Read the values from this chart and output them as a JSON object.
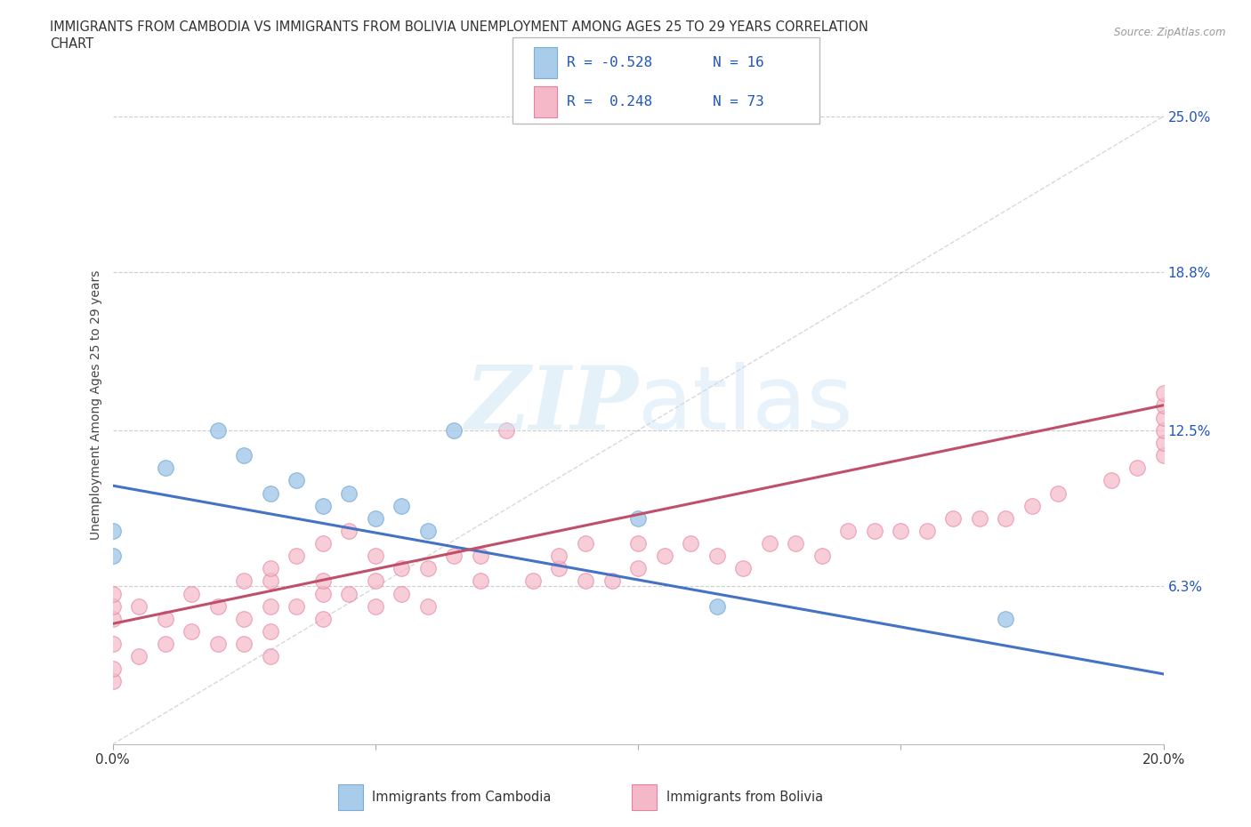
{
  "title_line1": "IMMIGRANTS FROM CAMBODIA VS IMMIGRANTS FROM BOLIVIA UNEMPLOYMENT AMONG AGES 25 TO 29 YEARS CORRELATION",
  "title_line2": "CHART",
  "source": "Source: ZipAtlas.com",
  "ylabel": "Unemployment Among Ages 25 to 29 years",
  "xlim": [
    0.0,
    0.2
  ],
  "ylim": [
    0.0,
    0.27
  ],
  "yticks": [
    0.063,
    0.125,
    0.188,
    0.25
  ],
  "ytick_labels": [
    "6.3%",
    "12.5%",
    "18.8%",
    "25.0%"
  ],
  "xticks": [
    0.0,
    0.05,
    0.1,
    0.15,
    0.2
  ],
  "xtick_labels": [
    "0.0%",
    "",
    "",
    "",
    "20.0%"
  ],
  "background_color": "#ffffff",
  "watermark": "ZIPatlas",
  "cambodia_color": "#A8CCEA",
  "bolivia_color": "#F5B8C8",
  "cambodia_edge": "#7AADD8",
  "bolivia_edge": "#E880A0",
  "trend_cambodia_color": "#4472C4",
  "trend_bolivia_color": "#C0506A",
  "diagonal_color": "#C8C8C8",
  "grid_color": "#CCCCCC",
  "r_color": "#2255BB",
  "cambodia_trend_x0": 0.0,
  "cambodia_trend_y0": 0.103,
  "cambodia_trend_x1": 0.2,
  "cambodia_trend_y1": 0.028,
  "bolivia_trend_x0": 0.0,
  "bolivia_trend_y0": 0.048,
  "bolivia_trend_x1": 0.2,
  "bolivia_trend_y1": 0.135,
  "cambodia_scatter_x": [
    0.0,
    0.0,
    0.01,
    0.02,
    0.025,
    0.03,
    0.035,
    0.04,
    0.045,
    0.05,
    0.055,
    0.06,
    0.065,
    0.1,
    0.115,
    0.17
  ],
  "cambodia_scatter_y": [
    0.075,
    0.085,
    0.11,
    0.125,
    0.115,
    0.1,
    0.105,
    0.095,
    0.1,
    0.09,
    0.095,
    0.085,
    0.125,
    0.09,
    0.055,
    0.05
  ],
  "bolivia_scatter_x": [
    0.0,
    0.0,
    0.0,
    0.0,
    0.0,
    0.0,
    0.005,
    0.005,
    0.01,
    0.01,
    0.015,
    0.015,
    0.02,
    0.02,
    0.025,
    0.025,
    0.025,
    0.03,
    0.03,
    0.03,
    0.03,
    0.03,
    0.035,
    0.035,
    0.04,
    0.04,
    0.04,
    0.04,
    0.045,
    0.045,
    0.05,
    0.05,
    0.05,
    0.055,
    0.055,
    0.06,
    0.06,
    0.065,
    0.07,
    0.07,
    0.075,
    0.08,
    0.085,
    0.085,
    0.09,
    0.09,
    0.095,
    0.1,
    0.1,
    0.105,
    0.11,
    0.115,
    0.12,
    0.125,
    0.13,
    0.135,
    0.14,
    0.145,
    0.15,
    0.155,
    0.16,
    0.165,
    0.17,
    0.175,
    0.18,
    0.19,
    0.195,
    0.2,
    0.2,
    0.2,
    0.2,
    0.2,
    0.2
  ],
  "bolivia_scatter_y": [
    0.025,
    0.03,
    0.04,
    0.05,
    0.055,
    0.06,
    0.035,
    0.055,
    0.04,
    0.05,
    0.045,
    0.06,
    0.04,
    0.055,
    0.04,
    0.05,
    0.065,
    0.035,
    0.045,
    0.055,
    0.065,
    0.07,
    0.055,
    0.075,
    0.05,
    0.06,
    0.065,
    0.08,
    0.06,
    0.085,
    0.055,
    0.065,
    0.075,
    0.06,
    0.07,
    0.055,
    0.07,
    0.075,
    0.065,
    0.075,
    0.125,
    0.065,
    0.07,
    0.075,
    0.065,
    0.08,
    0.065,
    0.07,
    0.08,
    0.075,
    0.08,
    0.075,
    0.07,
    0.08,
    0.08,
    0.075,
    0.085,
    0.085,
    0.085,
    0.085,
    0.09,
    0.09,
    0.09,
    0.095,
    0.1,
    0.105,
    0.11,
    0.115,
    0.12,
    0.125,
    0.13,
    0.135,
    0.14
  ]
}
